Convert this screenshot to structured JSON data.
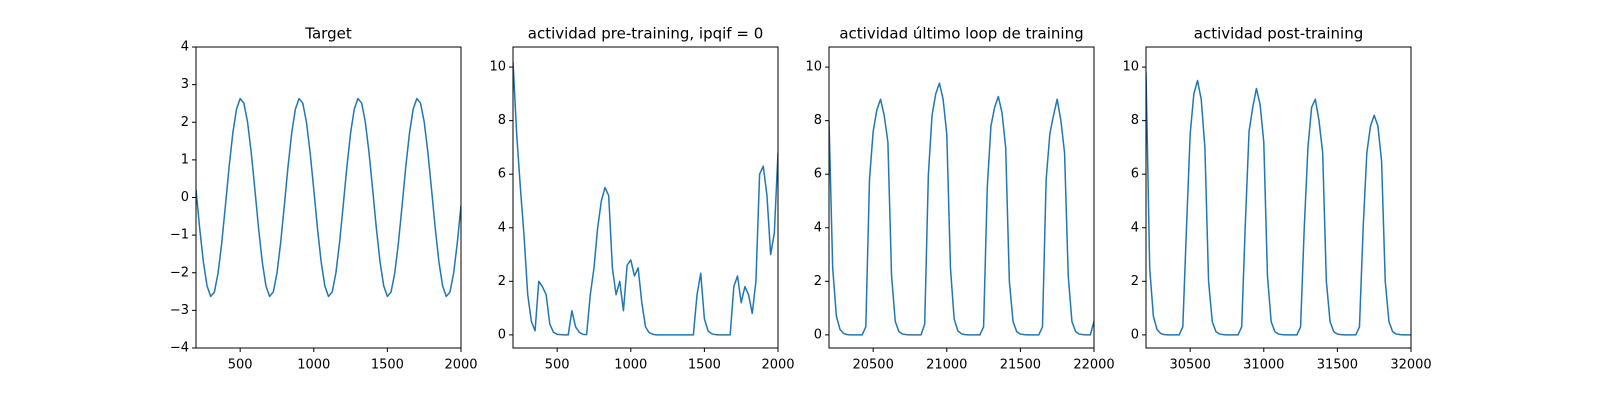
{
  "chart_data": [
    {
      "type": "line",
      "title": "Target",
      "color": "#1f77b4",
      "x": [
        200,
        225,
        250,
        275,
        300,
        325,
        350,
        375,
        400,
        425,
        450,
        475,
        500,
        525,
        550,
        575,
        600,
        625,
        650,
        675,
        700,
        725,
        750,
        775,
        800,
        825,
        850,
        875,
        900,
        925,
        950,
        975,
        1000,
        1025,
        1050,
        1075,
        1100,
        1125,
        1150,
        1175,
        1200,
        1225,
        1250,
        1275,
        1300,
        1325,
        1350,
        1375,
        1400,
        1425,
        1450,
        1475,
        1500,
        1525,
        1550,
        1575,
        1600,
        1625,
        1650,
        1675,
        1700,
        1725,
        1750,
        1775,
        1800,
        1825,
        1850,
        1875,
        1900,
        1925,
        1950,
        1975,
        2000
      ],
      "values": [
        0.21,
        -0.82,
        -1.71,
        -2.35,
        -2.63,
        -2.51,
        -2.01,
        -1.2,
        -0.21,
        0.82,
        1.71,
        2.35,
        2.63,
        2.51,
        2.01,
        1.2,
        0.21,
        -0.82,
        -1.71,
        -2.35,
        -2.63,
        -2.51,
        -2.01,
        -1.2,
        -0.21,
        0.82,
        1.71,
        2.35,
        2.63,
        2.51,
        2.01,
        1.2,
        0.21,
        -0.82,
        -1.71,
        -2.35,
        -2.63,
        -2.51,
        -2.01,
        -1.2,
        -0.21,
        0.82,
        1.71,
        2.35,
        2.63,
        2.51,
        2.01,
        1.2,
        0.21,
        -0.82,
        -1.71,
        -2.35,
        -2.63,
        -2.51,
        -2.01,
        -1.2,
        -0.21,
        0.82,
        1.71,
        2.35,
        2.63,
        2.51,
        2.01,
        1.2,
        0.21,
        -0.82,
        -1.71,
        -2.35,
        -2.63,
        -2.51,
        -2.01,
        -1.2,
        -0.21
      ],
      "xlim": [
        200,
        2000
      ],
      "ylim": [
        -4,
        4
      ],
      "xticks": [
        500,
        1000,
        1500,
        2000
      ],
      "yticks": [
        {
          "value": -4,
          "label": "−4"
        },
        {
          "value": -3,
          "label": "−3"
        },
        {
          "value": -2,
          "label": "−2"
        },
        {
          "value": -1,
          "label": "−1"
        },
        0,
        1,
        2,
        3,
        4
      ]
    },
    {
      "type": "line",
      "title": "actividad pre-training, ipqif = 0",
      "color": "#1f77b4",
      "x": [
        200,
        225,
        250,
        275,
        300,
        325,
        350,
        375,
        400,
        425,
        450,
        475,
        500,
        525,
        550,
        575,
        600,
        625,
        650,
        675,
        700,
        725,
        750,
        775,
        800,
        825,
        850,
        875,
        900,
        925,
        950,
        975,
        1000,
        1025,
        1050,
        1075,
        1100,
        1125,
        1150,
        1175,
        1200,
        1225,
        1250,
        1275,
        1300,
        1325,
        1350,
        1375,
        1400,
        1425,
        1450,
        1475,
        1500,
        1525,
        1550,
        1575,
        1600,
        1625,
        1650,
        1675,
        1700,
        1725,
        1750,
        1775,
        1800,
        1825,
        1850,
        1875,
        1900,
        1925,
        1950,
        1975,
        2000
      ],
      "values": [
        10.2,
        7.5,
        5.5,
        3.7,
        1.5,
        0.5,
        0.15,
        2.0,
        1.8,
        1.5,
        0.4,
        0.1,
        0.02,
        0.01,
        0,
        0,
        0.9,
        0.3,
        0.1,
        0.02,
        0.01,
        1.5,
        2.5,
        4.0,
        5.0,
        5.5,
        5.2,
        2.5,
        1.5,
        2.0,
        0.9,
        2.6,
        2.8,
        2.2,
        2.5,
        1.2,
        0.3,
        0.08,
        0.02,
        0,
        0,
        0,
        0,
        0,
        0,
        0,
        0,
        0,
        0,
        0,
        1.5,
        2.3,
        0.6,
        0.15,
        0.04,
        0.01,
        0,
        0,
        0,
        0,
        1.8,
        2.2,
        1.2,
        1.8,
        1.5,
        0.8,
        2.0,
        6.0,
        6.3,
        5.2,
        3.0,
        3.8,
        6.8
      ],
      "xlim": [
        200,
        2000
      ],
      "ylim": [
        -0.49,
        10.75
      ],
      "xticks": [
        500,
        1000,
        1500,
        2000
      ],
      "yticks": [
        0,
        2,
        4,
        6,
        8,
        10
      ]
    },
    {
      "type": "line",
      "title": "actividad último loop de training",
      "color": "#1f77b4",
      "x": [
        20200,
        20225,
        20250,
        20275,
        20300,
        20325,
        20350,
        20375,
        20400,
        20425,
        20450,
        20475,
        20500,
        20525,
        20550,
        20575,
        20600,
        20625,
        20650,
        20675,
        20700,
        20725,
        20750,
        20775,
        20800,
        20825,
        20850,
        20875,
        20900,
        20925,
        20950,
        20975,
        21000,
        21025,
        21050,
        21075,
        21100,
        21125,
        21150,
        21175,
        21200,
        21225,
        21250,
        21275,
        21300,
        21325,
        21350,
        21375,
        21400,
        21425,
        21450,
        21475,
        21500,
        21525,
        21550,
        21575,
        21600,
        21625,
        21650,
        21675,
        21700,
        21725,
        21750,
        21775,
        21800,
        21825,
        21850,
        21875,
        21900,
        21925,
        21950,
        21975,
        22000
      ],
      "values": [
        8.0,
        2.5,
        0.7,
        0.2,
        0.05,
        0.01,
        0,
        0,
        0,
        0,
        0.3,
        5.8,
        7.6,
        8.4,
        8.8,
        8.2,
        7.2,
        2.2,
        0.5,
        0.12,
        0.03,
        0.01,
        0,
        0,
        0,
        0,
        0.4,
        6.0,
        8.2,
        9.0,
        9.4,
        8.8,
        7.5,
        2.5,
        0.6,
        0.15,
        0.04,
        0.01,
        0,
        0,
        0,
        0,
        0.3,
        5.5,
        7.8,
        8.5,
        8.9,
        8.3,
        7.0,
        2.0,
        0.5,
        0.12,
        0.03,
        0.01,
        0,
        0,
        0,
        0,
        0.3,
        5.8,
        7.5,
        8.2,
        8.8,
        8.0,
        6.8,
        2.2,
        0.5,
        0.12,
        0.03,
        0.01,
        0,
        0,
        0.5
      ],
      "xlim": [
        20200,
        22000
      ],
      "ylim": [
        -0.49,
        10.75
      ],
      "xticks": [
        20500,
        21000,
        21500,
        22000
      ],
      "yticks": [
        0,
        2,
        4,
        6,
        8,
        10
      ]
    },
    {
      "type": "line",
      "title": "actividad post-training",
      "color": "#1f77b4",
      "x": [
        30200,
        30225,
        30250,
        30275,
        30300,
        30325,
        30350,
        30375,
        30400,
        30425,
        30450,
        30475,
        30500,
        30525,
        30550,
        30575,
        30600,
        30625,
        30650,
        30675,
        30700,
        30725,
        30750,
        30775,
        30800,
        30825,
        30850,
        30875,
        30900,
        30925,
        30950,
        30975,
        31000,
        31025,
        31050,
        31075,
        31100,
        31125,
        31150,
        31175,
        31200,
        31225,
        31250,
        31275,
        31300,
        31325,
        31350,
        31375,
        31400,
        31425,
        31450,
        31475,
        31500,
        31525,
        31550,
        31575,
        31600,
        31625,
        31650,
        31675,
        31700,
        31725,
        31750,
        31775,
        31800,
        31825,
        31850,
        31875,
        31900,
        31925,
        31950,
        31975,
        32000
      ],
      "values": [
        9.8,
        2.5,
        0.7,
        0.2,
        0.05,
        0.01,
        0,
        0,
        0,
        0,
        0.3,
        4.0,
        7.5,
        9.0,
        9.5,
        8.8,
        7.0,
        2.0,
        0.5,
        0.12,
        0.03,
        0.01,
        0,
        0,
        0,
        0,
        0.3,
        4.2,
        7.6,
        8.5,
        9.2,
        8.6,
        7.2,
        2.2,
        0.5,
        0.12,
        0.03,
        0.01,
        0,
        0,
        0,
        0,
        0.3,
        4.0,
        7.0,
        8.5,
        8.8,
        8.0,
        6.8,
        2.0,
        0.5,
        0.12,
        0.03,
        0.01,
        0,
        0,
        0,
        0,
        0.3,
        4.0,
        6.8,
        7.8,
        8.2,
        7.8,
        6.5,
        2.0,
        0.5,
        0.12,
        0.03,
        0.01,
        0,
        0,
        0
      ],
      "xlim": [
        30200,
        32000
      ],
      "ylim": [
        -0.49,
        10.75
      ],
      "xticks": [
        30500,
        31000,
        31500,
        32000
      ],
      "yticks": [
        0,
        2,
        4,
        6,
        8,
        10
      ]
    }
  ]
}
